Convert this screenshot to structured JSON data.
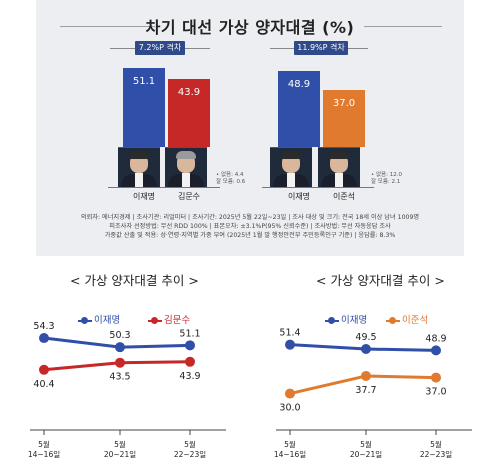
{
  "header": {
    "title": "차기 대선 가상 양자대결 (%)"
  },
  "colors": {
    "lee": "#2f4fa8",
    "kim": "#c62828",
    "leejs": "#e07a2e",
    "badge": "#2f4a8a"
  },
  "matchups": [
    {
      "gap_label": "7.2%P 격차",
      "candidates": [
        {
          "name": "이재명",
          "value": 51.1,
          "value_label": "51.1",
          "color": "#2f4fa8"
        },
        {
          "name": "김문수",
          "value": 43.9,
          "value_label": "43.9",
          "color": "#c62828"
        }
      ],
      "notes": [
        "• 없음: 4.4",
        "  잘 모름: 0.6"
      ]
    },
    {
      "gap_label": "11.9%P 격차",
      "candidates": [
        {
          "name": "이재명",
          "value": 48.9,
          "value_label": "48.9",
          "color": "#2f4fa8"
        },
        {
          "name": "이준석",
          "value": 37.0,
          "value_label": "37.0",
          "color": "#e07a2e"
        }
      ],
      "notes": [
        "• 없음: 12.0",
        "  잘 모름: 2.1"
      ]
    }
  ],
  "methodology": [
    "의뢰자: 에너지경제 | 조사기관: 리얼미터 | 조사기간: 2025년 5월 22일~23일 | 조사 대상 및 크기: 전국 18세 이상 남녀 1009명",
    "피조사자 선정방법: 무선 RDD 100% | 표본오차: ±3.1%P(95% 신뢰수준) | 조사방법: 무선 자동응답 조사",
    "가중값 산출 및 적용: 성·연령·지역별 가중 부여 (2025년 1월 말 행정안전부 주민등록인구 기준) | 응답률: 8.3%"
  ],
  "chart_data": [
    {
      "type": "line",
      "title": "< 가상 양자대결 추이 >",
      "categories": [
        "5월\n14~16일",
        "5월\n20~21일",
        "5월\n22~23일"
      ],
      "series": [
        {
          "name": "이재명",
          "values": [
            54.3,
            50.3,
            51.1
          ],
          "labels": [
            "54.3",
            "50.3",
            "51.1"
          ],
          "color": "#2f4fa8"
        },
        {
          "name": "김문수",
          "values": [
            40.4,
            43.5,
            43.9
          ],
          "labels": [
            "40.4",
            "43.5",
            "43.9"
          ],
          "color": "#c62828"
        }
      ],
      "grid": false
    },
    {
      "type": "line",
      "title": "< 가상 양자대결 추이 >",
      "categories": [
        "5월\n14~16일",
        "5월\n20~21일",
        "5월\n22~23일"
      ],
      "series": [
        {
          "name": "이재명",
          "values": [
            51.4,
            49.5,
            48.9
          ],
          "labels": [
            "51.4",
            "49.5",
            "48.9"
          ],
          "color": "#2f4fa8"
        },
        {
          "name": "이준석",
          "values": [
            30.0,
            37.7,
            37.0
          ],
          "labels": [
            "30.0",
            "37.7",
            "37.0"
          ],
          "color": "#e07a2e"
        }
      ],
      "grid": false
    }
  ]
}
